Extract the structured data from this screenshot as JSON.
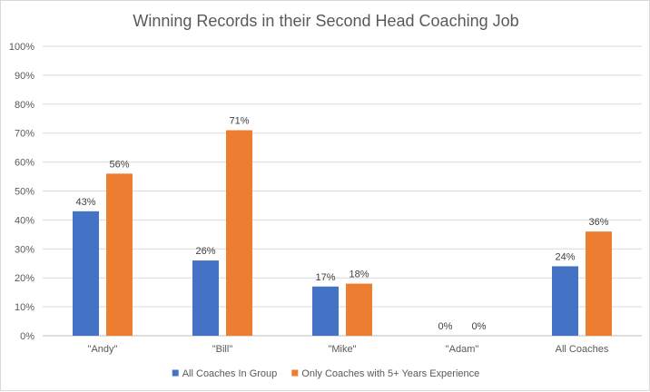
{
  "chart_data": {
    "type": "bar",
    "title": "Winning Records in their Second Head Coaching Job",
    "xlabel": "",
    "ylabel": "",
    "categories": [
      "\"Andy\"",
      "\"Bill\"",
      "\"Mike\"",
      "\"Adam\"",
      "All Coaches"
    ],
    "series": [
      {
        "name": "All Coaches In Group",
        "color": "#4472C4",
        "values": [
          43,
          26,
          17,
          0,
          24
        ],
        "labels": [
          "43%",
          "26%",
          "17%",
          "0%",
          "24%"
        ]
      },
      {
        "name": "Only Coaches with 5+ Years Experience",
        "color": "#ED7D31",
        "values": [
          56,
          71,
          18,
          0,
          36
        ],
        "labels": [
          "56%",
          "71%",
          "18%",
          "0%",
          "36%"
        ]
      }
    ],
    "ylim": [
      0,
      100
    ],
    "yticks": [
      "0%",
      "10%",
      "20%",
      "30%",
      "40%",
      "50%",
      "60%",
      "70%",
      "80%",
      "90%",
      "100%"
    ],
    "grid": true,
    "legend_position": "bottom"
  }
}
